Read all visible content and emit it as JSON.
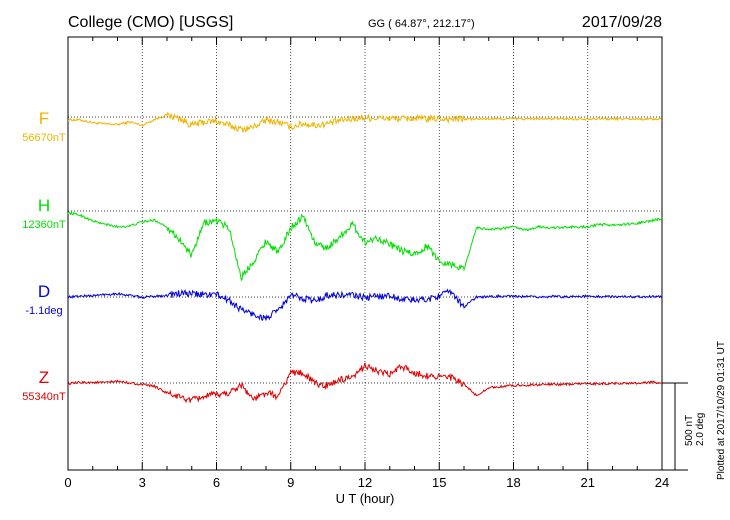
{
  "header": {
    "station": "College (CMO)  [USGS]",
    "coords": "GG ( 64.87°, 212.17°)",
    "date": "2017/09/28"
  },
  "footer": {
    "plotted": "Plotted at 2017/10/29 01:31  UT"
  },
  "colors": {
    "F": "#f0b400",
    "H": "#00e000",
    "D": "#0000e0",
    "Z": "#e00000"
  },
  "chart_data": {
    "type": "line",
    "xlabel": "U T (hour)",
    "xlim": [
      0,
      24
    ],
    "xticks": [
      0,
      3,
      6,
      9,
      12,
      15,
      18,
      21,
      24
    ],
    "xtick_labels": [
      "0",
      "3",
      "6",
      "9",
      "12",
      "15",
      "18",
      "21",
      "24"
    ],
    "scale": {
      "nT": "500 nT",
      "deg": "2.0 deg"
    },
    "series": [
      {
        "name": "F",
        "baseline": "56670nT",
        "color": "#f0b400",
        "values": [
          -16,
          -18,
          -34,
          -42,
          -45,
          -30,
          -50,
          -15,
          12,
          -8,
          -50,
          -30,
          -25,
          -50,
          -75,
          -60,
          -20,
          -30,
          -60,
          -40,
          -50,
          -40,
          -20,
          -10,
          -5,
          -7,
          -8,
          -10,
          -8,
          -12,
          -10,
          -12,
          -12,
          -12,
          -11,
          -12,
          -10,
          -12,
          -10,
          -11,
          -10,
          -12,
          -10,
          -10,
          -12,
          -10,
          -12,
          -12,
          -13
        ]
      },
      {
        "name": "H",
        "baseline": "12360nT",
        "color": "#00e000",
        "values": [
          -10,
          -25,
          -60,
          -80,
          -95,
          -90,
          -65,
          -55,
          -95,
          -170,
          -270,
          -70,
          -60,
          -100,
          -400,
          -300,
          -180,
          -250,
          -100,
          -30,
          -200,
          -220,
          -150,
          -80,
          -190,
          -160,
          -200,
          -240,
          -260,
          -210,
          -300,
          -320,
          -350,
          -100,
          -110,
          -105,
          -95,
          -115,
          -95,
          -100,
          -100,
          -95,
          -95,
          -80,
          -85,
          -80,
          -75,
          -60,
          -45
        ]
      },
      {
        "name": "D",
        "baseline": "-1.1deg",
        "color": "#0000e0",
        "values": [
          0,
          5,
          8,
          15,
          20,
          10,
          -3,
          5,
          10,
          22,
          18,
          15,
          15,
          -20,
          -75,
          -105,
          -130,
          -80,
          10,
          -5,
          -25,
          12,
          10,
          12,
          -5,
          5,
          8,
          -12,
          -20,
          -15,
          10,
          30,
          -60,
          0,
          1,
          5,
          3,
          2,
          0,
          3,
          2,
          3,
          4,
          2,
          3,
          2,
          3,
          3,
          2
        ]
      },
      {
        "name": "Z",
        "baseline": "55340nT",
        "color": "#e00000",
        "values": [
          -5,
          3,
          4,
          2,
          10,
          1,
          -10,
          -20,
          -60,
          -85,
          -105,
          -80,
          -70,
          -60,
          -10,
          -100,
          -60,
          -80,
          65,
          60,
          -5,
          -15,
          20,
          25,
          110,
          70,
          50,
          100,
          60,
          45,
          40,
          30,
          -10,
          -75,
          -28,
          -22,
          -15,
          -12,
          -10,
          -8,
          -8,
          -5,
          -5,
          -4,
          -3,
          -1,
          0,
          5,
          3
        ]
      }
    ]
  }
}
